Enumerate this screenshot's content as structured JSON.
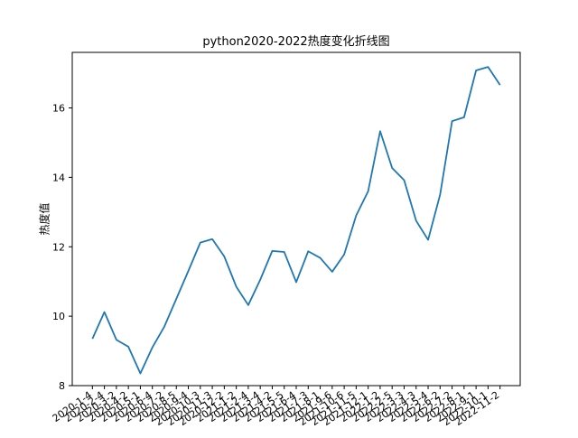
{
  "chart_data": {
    "type": "line",
    "title": "python2020-2022热度变化折线图",
    "xlabel": "",
    "ylabel": "热度值",
    "ylim": [
      8,
      17.6
    ],
    "yticks": [
      8,
      10,
      12,
      14,
      16
    ],
    "grid": false,
    "color": "#1f77b4",
    "x": [
      "2020-1-4",
      "2020-2-4",
      "2020-3-2",
      "2020-4-2",
      "2020-5-1",
      "2020-6-4",
      "2020-7-2",
      "2020-8-5",
      "2020-9-4",
      "2020-10-3",
      "2020-11-3",
      "2020-12-2",
      "2021-1-2",
      "2021-2-4",
      "2021-3-4",
      "2021-4-2",
      "2021-5-5",
      "2021-6-4",
      "2021-7-3",
      "2021-8-1",
      "2021-9-6",
      "2021-10-6",
      "2021-11-5",
      "2021-12-1",
      "2022-1-2",
      "2022-2-5",
      "2022-3-3",
      "2022-4-3",
      "2022-5-4",
      "2022-6-2",
      "2022-7-2",
      "2022-8-1",
      "2022-9-1",
      "2022-10-1",
      "2022-11-2"
    ],
    "values": [
      9.35,
      10.12,
      9.32,
      9.12,
      8.35,
      9.1,
      9.7,
      10.5,
      11.3,
      12.12,
      12.22,
      11.72,
      10.85,
      10.32,
      11.05,
      11.88,
      11.85,
      10.98,
      11.87,
      11.68,
      11.28,
      11.78,
      12.9,
      13.6,
      15.33,
      14.27,
      13.92,
      12.75,
      12.2,
      13.5,
      15.62,
      15.73,
      17.08,
      17.18,
      16.66
    ]
  }
}
